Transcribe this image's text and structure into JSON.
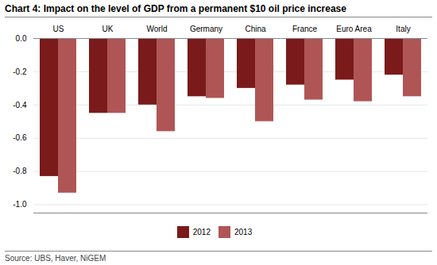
{
  "chart_data": {
    "type": "bar",
    "title": "Chart 4: Impact on the level of GDP from a permanent $10 oil price increase",
    "categories": [
      "US",
      "UK",
      "World",
      "Germany",
      "China",
      "France",
      "Euro Area",
      "Italy"
    ],
    "series": [
      {
        "name": "2012",
        "color": "#7b1a1a",
        "values": [
          -0.83,
          -0.45,
          -0.4,
          -0.35,
          -0.3,
          -0.28,
          -0.25,
          -0.22
        ]
      },
      {
        "name": "2013",
        "color": "#b05555",
        "values": [
          -0.93,
          -0.45,
          -0.56,
          -0.36,
          -0.5,
          -0.37,
          -0.38,
          -0.35
        ]
      }
    ],
    "ylim": [
      -1.05,
      0.0
    ],
    "yticks": [
      {
        "value": 0.0,
        "label": "0.0"
      },
      -0.2,
      -0.4,
      -0.6,
      -0.8,
      {
        "value": -1.0,
        "label": "-1.0"
      }
    ],
    "grid": true,
    "legend": "bottom",
    "source": "Source: UBS, Haver, NiGEM"
  }
}
